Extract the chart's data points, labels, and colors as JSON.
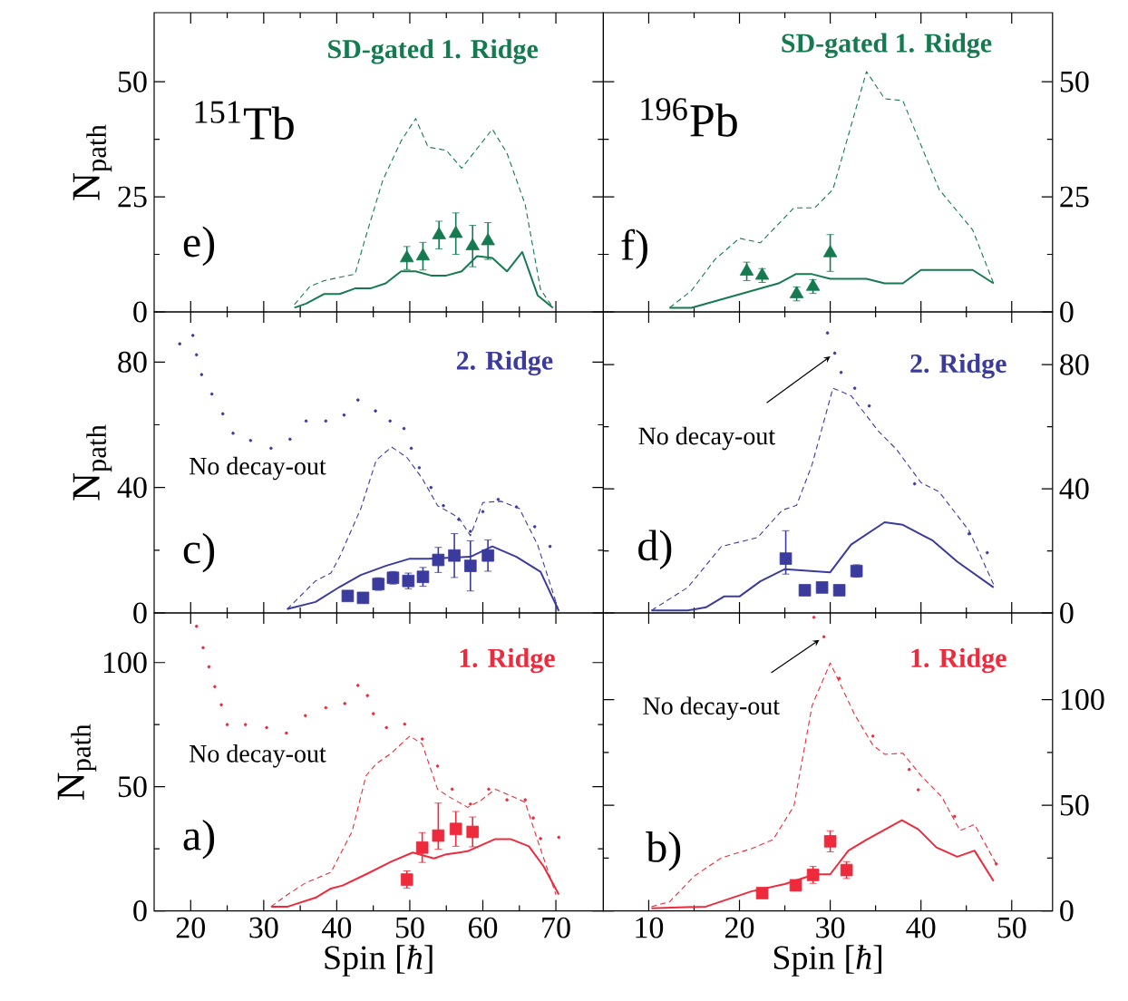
{
  "chart_data": [
    {
      "type": "line",
      "title": "SD-gated 1. Ridge",
      "ylabel": "N$_{path}$",
      "xlim": [
        15,
        76.5
      ],
      "ylim": [
        0,
        65
      ],
      "xticks": [
        20,
        30,
        40,
        50,
        60,
        70
      ],
      "yticks": [
        0,
        25,
        50
      ],
      "tick_labels": "y",
      "annotations": [
        "e)",
        "$^{151}$Tb"
      ],
      "series": [
        {
          "line_style": "dashed",
          "color": "#157a4f",
          "x": [
            34.2,
            36.3,
            38.3,
            42.5,
            43.8,
            46.3,
            48.8,
            50.8,
            52.5,
            55,
            57.1,
            61.3,
            63.3,
            65.8,
            67.9,
            69.6
          ],
          "values": [
            1.6,
            5.5,
            6.8,
            8.2,
            15.4,
            28.6,
            37.1,
            42,
            35.8,
            35.1,
            31.2,
            39.7,
            34.5,
            23.3,
            4.9,
            0.9
          ]
        },
        {
          "line_style": "solid",
          "color": "#157a4f",
          "x": [
            34.2,
            35.8,
            38.3,
            40.4,
            42.5,
            44.6,
            46.7,
            48.8,
            50.8,
            52.9,
            55,
            57.1,
            59.2,
            61.3,
            63.3,
            65.4,
            67.5,
            69.6
          ],
          "values": [
            0.9,
            1.8,
            3.9,
            3.9,
            5.1,
            5.1,
            6.2,
            8.8,
            8.8,
            7.9,
            7.9,
            8.8,
            12.1,
            11.7,
            8.8,
            13,
            3.6,
            0.9
          ]
        },
        {
          "type": "scatter",
          "marker": "triangle",
          "color": "#157a4f",
          "x": [
            49.6,
            51.8,
            54,
            56.3,
            58.6,
            60.7
          ],
          "values": [
            11.7,
            12.1,
            16.7,
            17,
            14.3,
            15.4
          ],
          "errors": [
            2.5,
            3,
            3,
            4.5,
            4.5,
            4
          ]
        }
      ]
    },
    {
      "type": "line",
      "title": "SD-gated 1. Ridge",
      "xlim": [
        5,
        54.5
      ],
      "ylim": [
        0,
        65
      ],
      "xticks": [
        10,
        20,
        30,
        40,
        50
      ],
      "yticks": [
        0,
        25,
        50
      ],
      "tick_labels": "y",
      "annotations": [
        "f)",
        "$^{196}$Pb"
      ],
      "series": [
        {
          "line_style": "dashed",
          "color": "#157a4f",
          "x": [
            12.3,
            14.7,
            17.3,
            20,
            22.3,
            26,
            28.3,
            30.3,
            34,
            36,
            38,
            42,
            45.7,
            48
          ],
          "values": [
            0.9,
            4.6,
            11.4,
            16,
            15,
            22.6,
            22.6,
            26.6,
            52.2,
            46.3,
            45.9,
            26.6,
            17.8,
            6.2
          ]
        },
        {
          "line_style": "solid",
          "color": "#157a4f",
          "x": [
            12.3,
            14.7,
            24.3,
            26.2,
            28,
            30,
            34,
            36,
            38,
            40,
            45.7,
            48
          ],
          "values": [
            0.9,
            0.9,
            6.2,
            8.2,
            8.2,
            7.2,
            7.2,
            6.2,
            6.2,
            9.1,
            9.1,
            6.2
          ]
        },
        {
          "type": "scatter",
          "marker": "triangle",
          "color": "#157a4f",
          "x": [
            20.8,
            22.5,
            26.3,
            28.1,
            30
          ],
          "values": [
            8.8,
            7.9,
            3.9,
            5.5,
            12.8
          ],
          "errors": [
            2,
            1.5,
            1.5,
            1.5,
            4
          ]
        }
      ]
    },
    {
      "type": "line",
      "title": "2. Ridge",
      "ylabel": "N$_{path}$",
      "xlim": [
        15,
        76.5
      ],
      "ylim": [
        0,
        96
      ],
      "xticks": [
        20,
        30,
        40,
        50,
        60,
        70
      ],
      "yticks": [
        0,
        40,
        80
      ],
      "tick_labels": "y",
      "annotations": [
        "c)",
        "No decay-out"
      ],
      "series": [
        {
          "type": "scatter",
          "marker": "circle",
          "color": "#3b3b9e",
          "x": [
            18.5,
            20.3,
            20.8,
            21.5,
            22.9,
            24.4,
            25.8,
            28.2,
            31,
            33.6,
            35.8,
            38.5,
            41,
            42.9,
            45.3,
            47.3,
            49.2,
            50.2,
            51.3,
            52.9,
            54.6,
            56.7,
            58.3,
            60,
            62.1,
            64.6,
            67.1,
            69.2
          ],
          "values": [
            85.8,
            88.5,
            82.3,
            76,
            69.8,
            63.5,
            57.3,
            55,
            52.5,
            55.4,
            61.2,
            61.2,
            63.1,
            67.9,
            64.4,
            61.2,
            58.8,
            52.5,
            46.3,
            40,
            34.2,
            29.8,
            26,
            32.3,
            36.2,
            33.8,
            27.5,
            21.2
          ]
        },
        {
          "line_style": "dashed",
          "color": "#3b3b9e",
          "x": [
            33.2,
            37.1,
            39.2,
            40.4,
            43.3,
            45.4,
            47.5,
            49.6,
            51.7,
            53.8,
            56.7,
            58.3,
            60,
            62.5,
            65,
            67.5,
            70.4
          ],
          "values": [
            1.2,
            10.2,
            12.7,
            17.9,
            33.3,
            48.7,
            52.9,
            49.6,
            42.9,
            34.2,
            30.4,
            24.6,
            35.2,
            35.6,
            33.3,
            21.7,
            0.6
          ]
        },
        {
          "line_style": "solid",
          "color": "#3b3b9e",
          "x": [
            33.2,
            37.1,
            40.4,
            43.3,
            46.7,
            50,
            52.5,
            58.3,
            61.3,
            64.6,
            67.9,
            70.4
          ],
          "values": [
            1.2,
            3.5,
            8.3,
            12.1,
            15,
            17.3,
            17.3,
            17.9,
            21.2,
            17.9,
            13.1,
            0.6
          ]
        },
        {
          "type": "scatter",
          "marker": "square",
          "color": "#3b3b9e",
          "x": [
            41.5,
            43.6,
            45.7,
            47.7,
            49.8,
            51.8,
            53.9,
            56.1,
            58.3,
            60.7
          ],
          "values": [
            5.4,
            4.8,
            9.2,
            11.2,
            10.2,
            11.5,
            16.9,
            18.3,
            15,
            18.3
          ],
          "errors": [
            1.5,
            1.5,
            2,
            2,
            2.5,
            3,
            4,
            7,
            8,
            5
          ]
        }
      ]
    },
    {
      "type": "line",
      "title": "2. Ridge",
      "xlim": [
        5,
        54.5
      ],
      "ylim": [
        0,
        97
      ],
      "xticks": [
        10,
        20,
        30,
        40,
        50
      ],
      "yticks": [
        0,
        40,
        80
      ],
      "tick_labels": "y",
      "annotations": [
        "d)",
        {
          "text": "No decay-out",
          "x": 30.5,
          "y": 83.7
        }
      ],
      "series": [
        {
          "type": "scatter",
          "marker": "circle",
          "color": "#3b3b9e",
          "x": [
            29.7,
            30.5,
            31.2,
            32.7,
            34.3,
            39.3,
            45.3,
            47.3
          ],
          "values": [
            90.2,
            83.7,
            77.5,
            72.4,
            66.7,
            41.6,
            25.5,
            19.4
          ]
        },
        {
          "line_style": "dashed",
          "color": "#3b3b9e",
          "x": [
            10.3,
            14.3,
            18,
            22,
            24.7,
            26.3,
            28,
            30.3,
            32.3,
            35.3,
            37.3,
            40,
            42,
            45.3,
            48
          ],
          "values": [
            0.8,
            8.2,
            21.4,
            24.3,
            33.1,
            34.7,
            47.8,
            72.4,
            70,
            58.6,
            52.7,
            42,
            39,
            26.5,
            9.2
          ]
        },
        {
          "line_style": "solid",
          "color": "#3b3b9e",
          "x": [
            10.3,
            14.3,
            16.3,
            18.3,
            20,
            22.3,
            25,
            30,
            32.3,
            36,
            38,
            41.3,
            44,
            48
          ],
          "values": [
            0.8,
            0.8,
            1.8,
            5.3,
            5.3,
            10.2,
            14.1,
            13.1,
            22,
            29.2,
            28.4,
            23.3,
            16.5,
            8.2
          ]
        },
        {
          "type": "scatter",
          "marker": "square",
          "color": "#3b3b9e",
          "x": [
            25.1,
            27.2,
            29.1,
            31,
            32.9
          ],
          "values": [
            17.5,
            7.3,
            8.2,
            7.3,
            13.5
          ],
          "errors": [
            [
              12.5,
              26.5
            ],
            1,
            1,
            1,
            2
          ]
        }
      ]
    },
    {
      "type": "line",
      "title": "1. Ridge",
      "xlabel": "Spin [*ħ*]",
      "ylabel": "N$_{path}$",
      "xlim": [
        15,
        76.5
      ],
      "ylim": [
        0,
        120
      ],
      "xticks": [
        20,
        30,
        40,
        50,
        60,
        70
      ],
      "yticks": [
        0,
        50,
        100
      ],
      "annotations": [
        "a)",
        "No decay-out"
      ],
      "series": [
        {
          "type": "scatter",
          "marker": "circle",
          "color": "#ee2a3c",
          "x": [
            20.8,
            21.7,
            22.5,
            23.3,
            24.2,
            25,
            27.5,
            30.4,
            33.1,
            35.7,
            38.5,
            41.1,
            42.9,
            44.2,
            45,
            46.8,
            49.3,
            51.7,
            53.8,
            55.8,
            58.3,
            60.8,
            63.3,
            65.8,
            66.9,
            67.9,
            70.4
          ],
          "values": [
            114.6,
            106,
            98.3,
            90.3,
            83,
            75,
            75,
            73.8,
            71.6,
            78.6,
            81.8,
            83.5,
            90.8,
            86.7,
            79.4,
            73.8,
            75.2,
            69.2,
            58.3,
            49,
            43,
            49,
            44.7,
            44.7,
            37.4,
            29.1,
            29.6
          ]
        },
        {
          "line_style": "dashed",
          "color": "#ee2a3c",
          "x": [
            31,
            33.3,
            35.8,
            39.2,
            42.1,
            44,
            45.4,
            47.5,
            50,
            51.7,
            53.8,
            55.4,
            57.9,
            59.6,
            61.7,
            64.2,
            65.8,
            67.5,
            70
          ],
          "values": [
            1.7,
            6.6,
            11.4,
            15.5,
            32,
            54.4,
            59.2,
            63.6,
            70.4,
            67.2,
            49,
            45.9,
            41.7,
            44.2,
            49,
            45.9,
            43.7,
            28.4,
            6.6
          ]
        },
        {
          "line_style": "solid",
          "color": "#ee2a3c",
          "x": [
            31,
            33.3,
            37.1,
            39.2,
            40.8,
            44.2,
            47.5,
            50.4,
            53.3,
            55,
            57.9,
            61.7,
            63.8,
            66.3,
            68.3,
            70.4
          ],
          "values": [
            1.7,
            1.7,
            5.3,
            9,
            10.2,
            15,
            19.9,
            23.5,
            21.1,
            22.8,
            24,
            28.9,
            28.9,
            26,
            18,
            6.6
          ]
        },
        {
          "type": "scatter",
          "marker": "square",
          "color": "#ee2a3c",
          "x": [
            49.6,
            51.7,
            53.9,
            56.3,
            58.6
          ],
          "values": [
            12.6,
            25.5,
            30.3,
            33,
            31.8
          ],
          "errors": [
            3.5,
            6,
            [
              24.8,
              43.4
            ],
            7,
            6
          ]
        }
      ]
    },
    {
      "type": "line",
      "title": "1. Ridge",
      "xlabel": "Spin [*ħ*]",
      "xlim": [
        5,
        54.5
      ],
      "ylim": [
        0,
        141
      ],
      "xticks": [
        10,
        20,
        30,
        40,
        50
      ],
      "yticks": [
        0,
        50,
        100
      ],
      "annotations": [
        "b)",
        {
          "text": "No decay-out",
          "x": 29.3,
          "y": 129.7
        }
      ],
      "series": [
        {
          "type": "scatter",
          "marker": "circle",
          "color": "#ee2a3c",
          "x": [
            28.2,
            29.3,
            31,
            34.7,
            38.7,
            39.7,
            43.7,
            48.3
          ],
          "values": [
            138.9,
            129.7,
            110,
            82.7,
            66.9,
            57.3,
            44.7,
            22.2
          ]
        },
        {
          "line_style": "dashed",
          "color": "#ee2a3c",
          "x": [
            10.3,
            12.3,
            15,
            18,
            21.3,
            23.7,
            26,
            28,
            30,
            32.7,
            34.7,
            36,
            38,
            40,
            42.3,
            44.3,
            45.9,
            48.3
          ],
          "values": [
            2,
            4.3,
            16.4,
            25.1,
            29.4,
            33.7,
            49.6,
            97.1,
            117.3,
            92.8,
            78.4,
            74.1,
            74.6,
            64,
            53.9,
            38,
            40.9,
            22.2
          ]
        },
        {
          "line_style": "solid",
          "color": "#ee2a3c",
          "x": [
            10.3,
            16.3,
            21.3,
            25,
            28.3,
            30,
            32,
            34,
            37.9,
            39.7,
            41.7,
            44,
            45.9,
            48
          ],
          "values": [
            1.2,
            2,
            9.2,
            12.7,
            17.3,
            17.3,
            28.5,
            33.7,
            42.9,
            38.6,
            30,
            25.6,
            28.5,
            14.1
          ]
        },
        {
          "type": "scatter",
          "marker": "square",
          "color": "#ee2a3c",
          "x": [
            22.5,
            26.2,
            28.1,
            30,
            31.8
          ],
          "values": [
            8.4,
            12.1,
            17,
            32.9,
            19.3
          ],
          "errors": [
            2,
            2.5,
            4,
            5,
            4
          ]
        }
      ]
    }
  ]
}
